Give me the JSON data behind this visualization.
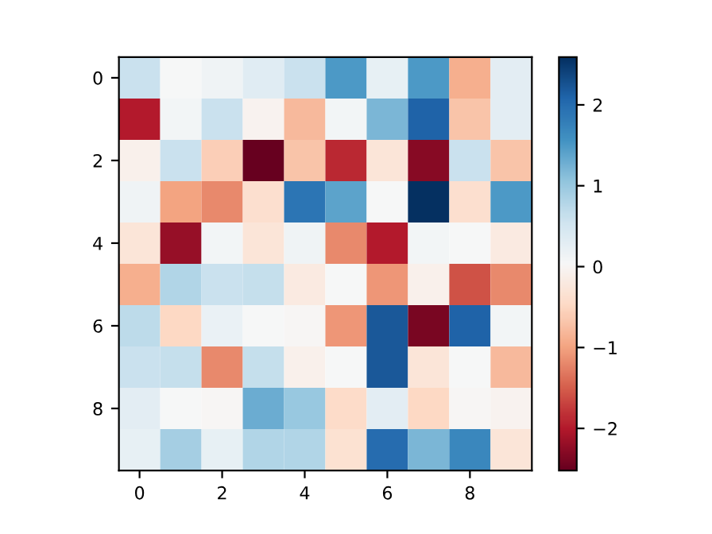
{
  "chart_data": {
    "type": "heatmap",
    "categories": [
      "0",
      null,
      "2",
      null,
      "4",
      null,
      "6",
      null,
      "8",
      null
    ],
    "y_categories": [
      "0",
      null,
      "2",
      null,
      "4",
      null,
      "6",
      null,
      "8",
      null
    ],
    "cells": [
      [
        0.6,
        0.05,
        0.15,
        0.35,
        0.6,
        1.5,
        0.25,
        1.5,
        -0.9,
        0.3
      ],
      [
        -2.0,
        0.1,
        0.6,
        -0.05,
        -0.8,
        0.1,
        1.2,
        2.1,
        -0.7,
        0.3
      ],
      [
        -0.1,
        0.6,
        -0.6,
        -2.52,
        -0.7,
        -1.9,
        -0.3,
        -2.3,
        0.6,
        -0.7
      ],
      [
        0.15,
        -1.0,
        -1.2,
        -0.4,
        1.9,
        1.4,
        0.05,
        2.59,
        -0.4,
        1.5
      ],
      [
        -0.3,
        -2.2,
        0.1,
        -0.3,
        0.15,
        -1.2,
        -2.0,
        0.1,
        0.05,
        -0.2
      ],
      [
        -0.9,
        0.8,
        0.6,
        0.65,
        -0.2,
        0.05,
        -1.1,
        -0.1,
        -1.6,
        -1.2
      ],
      [
        0.7,
        -0.5,
        0.2,
        0.05,
        0.0,
        -1.1,
        2.2,
        -2.4,
        2.1,
        0.1
      ],
      [
        0.6,
        0.65,
        -1.2,
        0.65,
        -0.1,
        0.05,
        2.2,
        -0.3,
        0.05,
        -0.8
      ],
      [
        0.3,
        0.05,
        0.0,
        1.3,
        1.0,
        -0.45,
        0.3,
        -0.5,
        0.0,
        -0.05
      ],
      [
        0.25,
        0.9,
        0.25,
        0.8,
        0.8,
        -0.35,
        2.0,
        1.2,
        1.7,
        -0.3
      ]
    ],
    "clim": [
      -2.52,
      2.59
    ],
    "cticks": [
      {
        "value": -2,
        "label": "−2"
      },
      {
        "value": -1,
        "label": "−1"
      },
      0,
      1,
      2
    ]
  }
}
